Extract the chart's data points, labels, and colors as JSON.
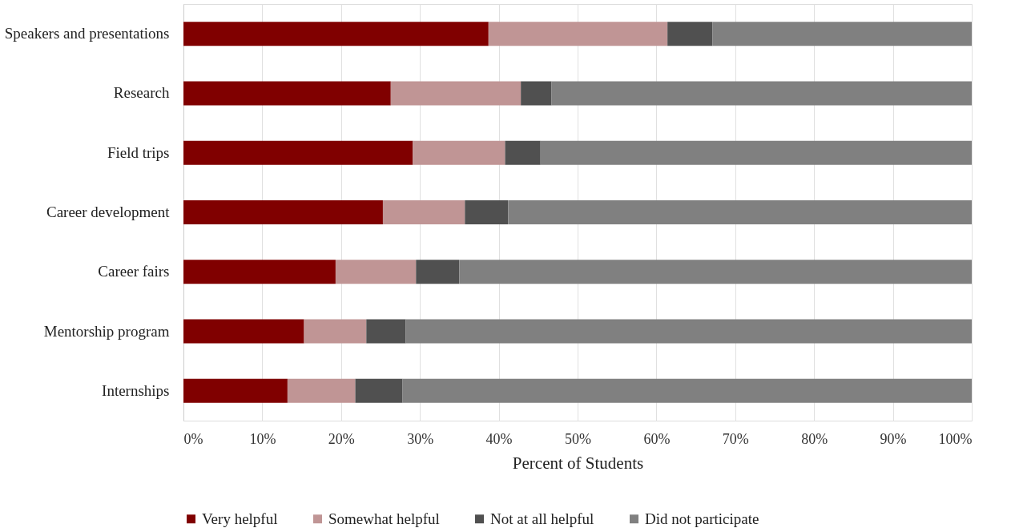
{
  "chart_data": {
    "type": "bar",
    "orientation": "horizontal",
    "stacked": true,
    "xlabel": "Percent of Students",
    "categories": [
      "Speakers and presentations",
      "Research",
      "Field trips",
      "Career development",
      "Career fairs",
      "Mentorship program",
      "Internships"
    ],
    "series": [
      {
        "name": "Very helpful",
        "color": "#800000",
        "values": [
          38.7,
          26.3,
          29.1,
          25.3,
          19.3,
          15.3,
          13.2
        ]
      },
      {
        "name": "Somewhat helpful",
        "color": "#c09595",
        "values": [
          22.7,
          16.5,
          11.7,
          10.4,
          10.2,
          7.9,
          8.6
        ]
      },
      {
        "name": "Not at all helpful",
        "color": "#505050",
        "values": [
          5.7,
          3.9,
          4.5,
          5.5,
          5.5,
          5.0,
          6.0
        ]
      },
      {
        "name": "Did not participate",
        "color": "#808080",
        "values": [
          32.9,
          53.3,
          54.7,
          58.8,
          65.0,
          71.8,
          72.2
        ]
      }
    ],
    "xlim": [
      0,
      100
    ],
    "xticks": [
      {
        "value": 0,
        "label": "0%"
      },
      {
        "value": 10,
        "label": "10%"
      },
      {
        "value": 20,
        "label": "20%"
      },
      {
        "value": 30,
        "label": "30%"
      },
      {
        "value": 40,
        "label": "40%"
      },
      {
        "value": 50,
        "label": "50%"
      },
      {
        "value": 60,
        "label": "60%"
      },
      {
        "value": 70,
        "label": "70%"
      },
      {
        "value": 80,
        "label": "80%"
      },
      {
        "value": 90,
        "label": "90%"
      },
      {
        "value": 100,
        "label": "100%"
      }
    ],
    "grid": "x",
    "legend": "bottom"
  }
}
